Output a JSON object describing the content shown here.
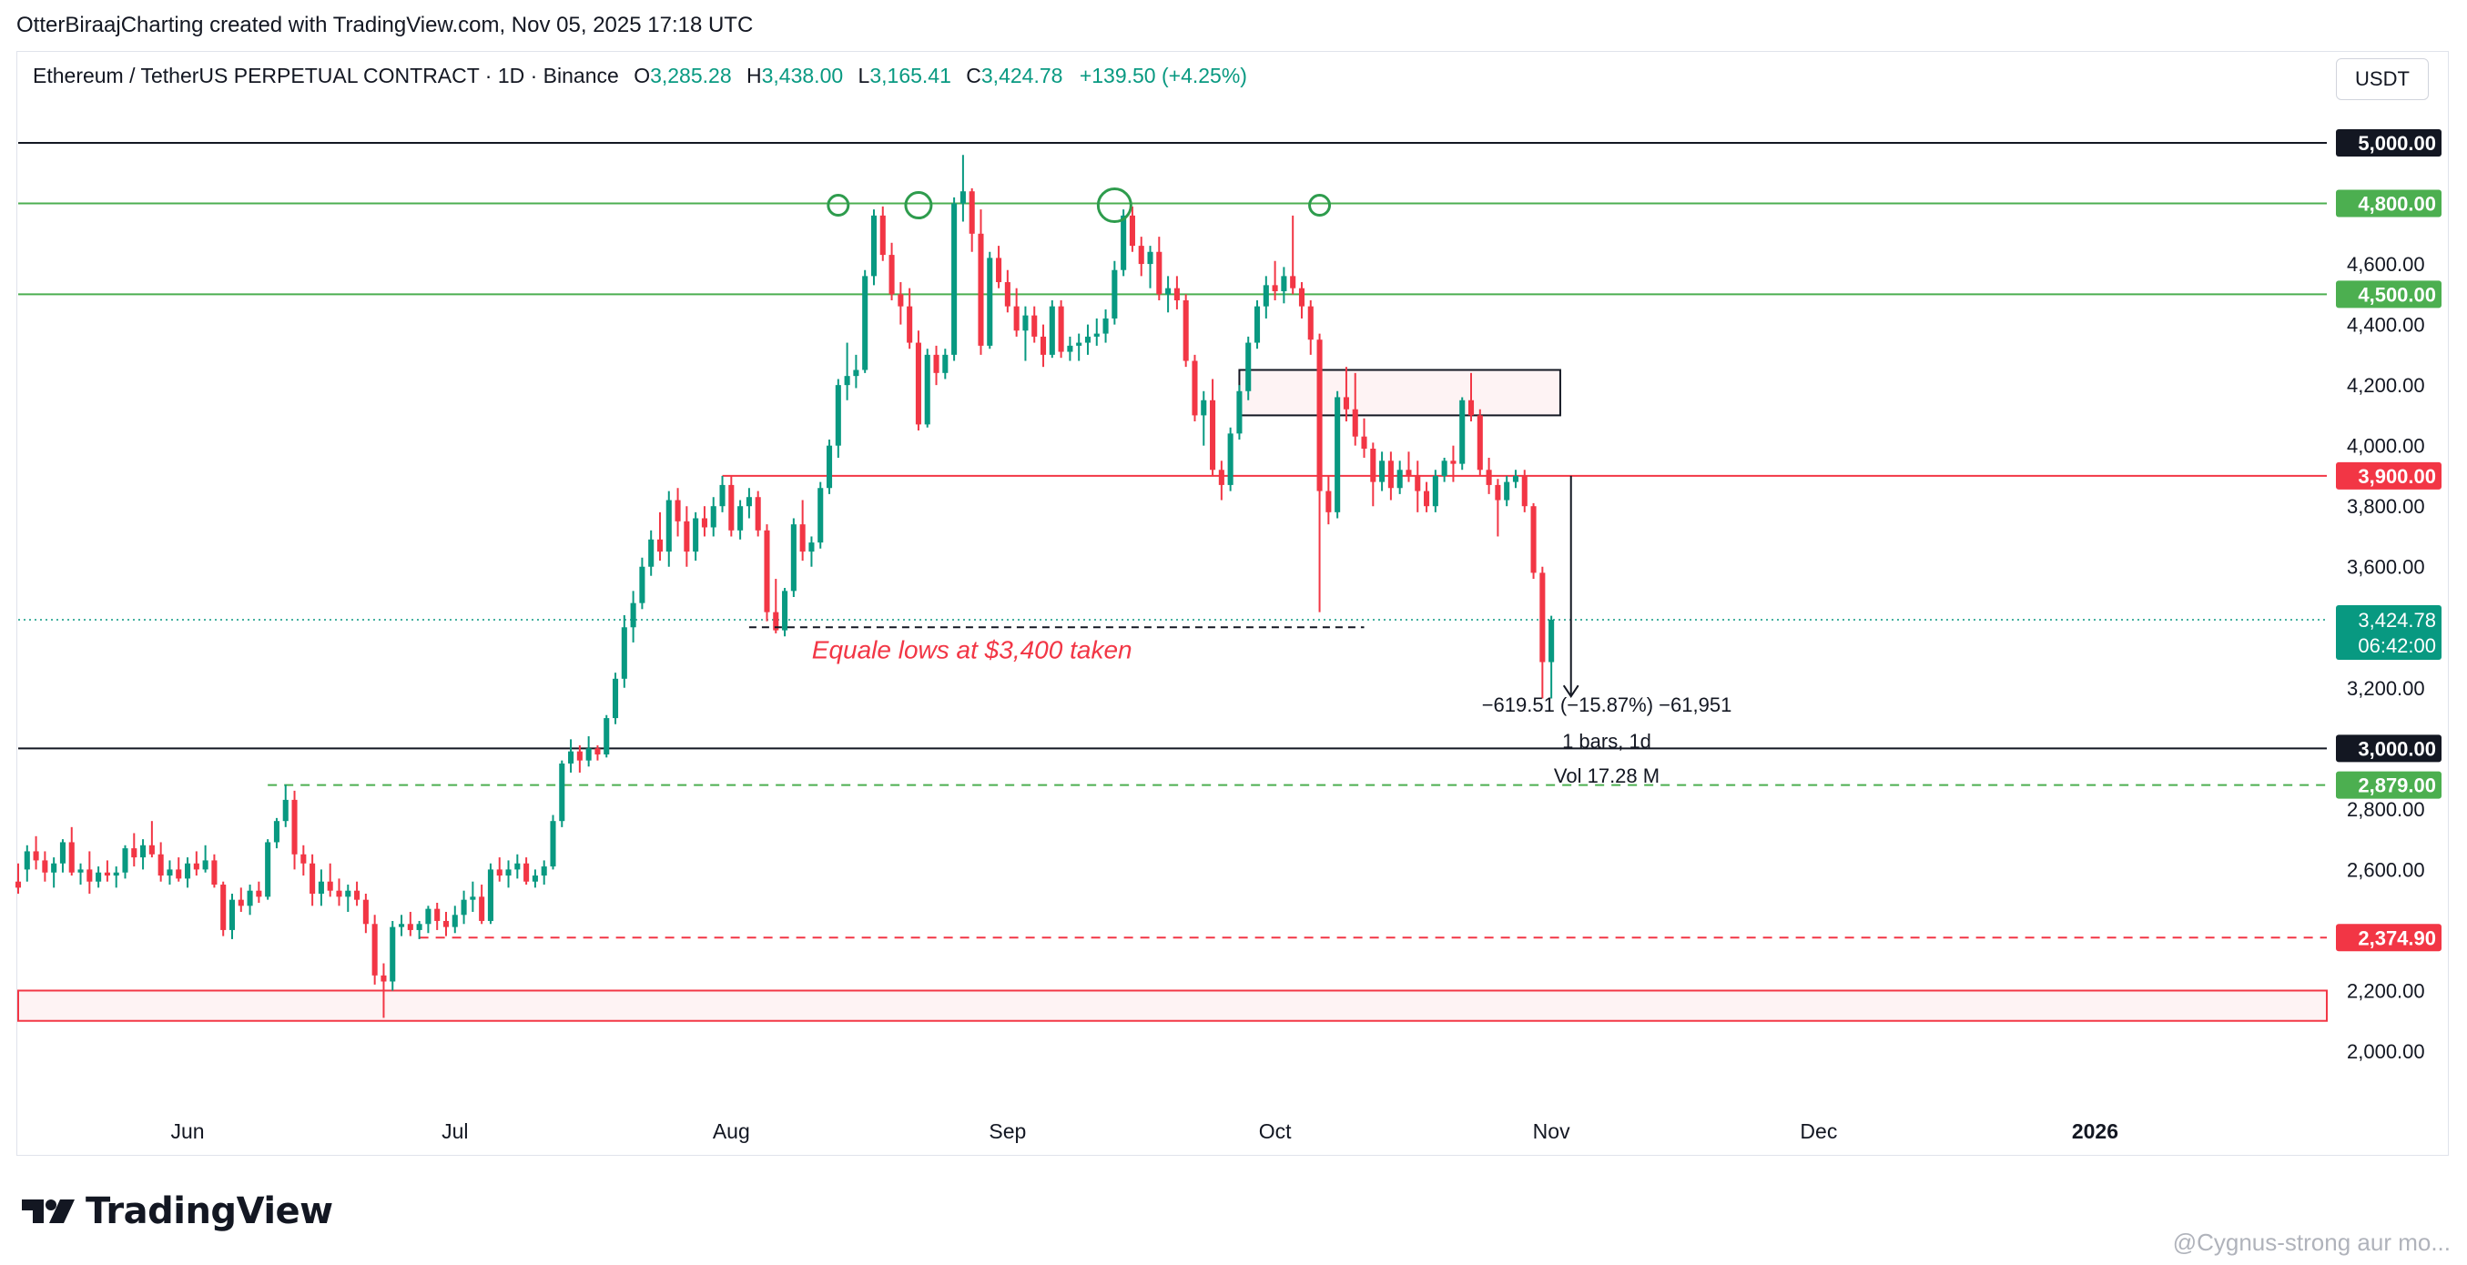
{
  "header": {
    "attribution": "OtterBiraajCharting created with TradingView.com, Nov 05, 2025 17:18 UTC"
  },
  "legend": {
    "symbol": "Ethereum / TetherUS PERPETUAL CONTRACT · 1D · Binance",
    "open_label": "O",
    "open": "3,285.28",
    "high_label": "H",
    "high": "3,438.00",
    "low_label": "L",
    "low": "3,165.41",
    "close_label": "C",
    "close": "3,424.78",
    "change": "+139.50 (+4.25%)"
  },
  "currency_button": "USDT",
  "branding": {
    "logo_text": "TradingView"
  },
  "watermark": "@Cygnus-strong aur mo...",
  "colors": {
    "up": "#089981",
    "down": "#f23645",
    "green_level": "#4caf50",
    "red_level": "#f23645",
    "black_level": "#131722",
    "annotation_red": "#f23645"
  },
  "chart_data": {
    "type": "candlestick",
    "title": "Ethereum / TetherUS PERPETUAL CONTRACT · 1D · Binance",
    "x_axis": {
      "type": "date",
      "range": [
        "2025-05-13",
        "2026-01-27"
      ],
      "tick_labels": [
        {
          "date": "2025-06-01",
          "label": "Jun"
        },
        {
          "date": "2025-07-01",
          "label": "Jul"
        },
        {
          "date": "2025-08-01",
          "label": "Aug"
        },
        {
          "date": "2025-09-01",
          "label": "Sep"
        },
        {
          "date": "2025-10-01",
          "label": "Oct"
        },
        {
          "date": "2025-11-01",
          "label": "Nov"
        },
        {
          "date": "2025-12-01",
          "label": "Dec"
        },
        {
          "date": "2026-01-01",
          "label": "2026"
        }
      ]
    },
    "y_axis": {
      "range": [
        1800,
        5200
      ],
      "ticks": [
        2000,
        2200,
        2600,
        2800,
        3200,
        3600,
        3800,
        4000,
        4200,
        4400,
        4600
      ],
      "tick_labels": [
        "2,000.00",
        "2,200.00",
        "2,600.00",
        "2,800.00",
        "3,200.00",
        "3,600.00",
        "3,800.00",
        "4,000.00",
        "4,200.00",
        "4,400.00",
        "4,600.00"
      ]
    },
    "grid": false,
    "price_levels": [
      {
        "price": 5000,
        "label": "5,000.00",
        "style": "solid",
        "color": "#131722"
      },
      {
        "price": 4800,
        "label": "4,800.00",
        "style": "solid",
        "color": "#4caf50"
      },
      {
        "price": 4500,
        "label": "4,500.00",
        "style": "solid",
        "color": "#4caf50"
      },
      {
        "price": 3900,
        "label": "3,900.00",
        "style": "solid",
        "color": "#f23645",
        "start": "2025-07-31"
      },
      {
        "price": 3000,
        "label": "3,000.00",
        "style": "solid",
        "color": "#131722"
      },
      {
        "price": 2879,
        "label": "2,879.00",
        "style": "dashed",
        "color": "#4caf50",
        "start": "2025-06-10"
      },
      {
        "price": 2374.9,
        "label": "2,374.90",
        "style": "dashed",
        "color": "#f23645",
        "start": "2025-06-27"
      }
    ],
    "current_price": {
      "price": 3424.78,
      "label": "3,424.78",
      "countdown": "06:42:00"
    },
    "zones": [
      {
        "from": 2100,
        "to": 2200,
        "start": "2025-05-13",
        "color": "#f23645"
      },
      {
        "from": 4100,
        "to": 4250,
        "start": "2025-09-27",
        "end": "2025-11-02",
        "color": "#f23645"
      }
    ],
    "annotations": {
      "equal_lows": {
        "text": "Equale lows at $3,400 taken",
        "price": 3400,
        "start": "2025-08-03",
        "end": "2025-10-11"
      },
      "circles": [
        {
          "date": "2025-08-13",
          "price": 4800
        },
        {
          "date": "2025-08-22",
          "price": 4800
        },
        {
          "date": "2025-09-13",
          "price": 4800
        },
        {
          "date": "2025-10-06",
          "price": 4800
        }
      ],
      "measure": {
        "from_date": "2025-11-03",
        "from_price": 3900,
        "to_price": 3280,
        "line1": "−619.51 (−15.87%) −61,951",
        "line2": "1 bars, 1d",
        "line3": "Vol 17.28 M"
      }
    },
    "series_ohlc_compact": "2025-05-13|2560,2620,2520,2540;2600,2680,2560,2660;2660,2710,2600,2630;2630,2660,2560,2590;2590,2640,2540,2620;2620,2700,2590,2690;2690,2740,2580,2590;2590,2620,2550,2600;2600,2660,2520,2560;2560,2610,2540,2590;2590,2630,2560,2580;2580,2610,2540,2590;2590,2680,2570,2670;2670,2720,2610,2640;2640,2700,2600,2680;2680,2760,2640,2650;2650,2690,2560,2580;2580,2630,2550,2600;2600,2640,2560,2570;2570,2640,2540,2620;2620,2660,2580,2600;2600,2680,2590,2630;2630,2650,2540,2550;2550,2560,2380,2400;2400,2520,2370,2500;2500,2540,2460,2480;2480,2550,2450,2530;2530,2560,2490,2510;2510,2700,2500,2690;2690,2770,2670,2760;2760,2880,2740,2830;2830,2860,2600,2650;2650,2680,2580,2620;2620,2650,2480,2520;2520,2600,2480,2560;2560,2620,2510,2530;2530,2570,2480,2510;2510,2550,2460,2530;2530,2560,2480,2500;2500,2520,2390,2420;2420,2450,2220,2250;2250,2290,2110,2230;2230,2430,2200,2410;2410,2450,2380,2420;2420,2460,2380,2400;2400,2430,2370,2420;2420,2480,2390,2470;2470,2490,2400,2430;2430,2460,2380,2410;2410,2480,2390,2450;2450,2530,2420,2500;2500,2560,2460,2510;2510,2550,2420,2430;2430,2620,2420,2600;2600,2640,2560,2580;2580,2630,2540,2600;2600,2650,2570,2620;2620,2640,2550,2560;2560,2600,2540,2580;2580,2630,2550,2610;2610,2780,2600,2760;2760,2960,2740,2950;2950,3030,2920,2990;2990,3010,2920,2960;2960,3040,2940,3000;3000,3010,2960,2980;2980,3110,2970,3100;3100,3250,3080,3230;3230,3440,3200,3400;3400,3520,3350,3480;3480,3630,3460,3600;3600,3720,3570,3690;3690,3780,3620,3650;3650,3850,3600,3820;3820,3860,3700,3750;3750,3800,3600,3650;3650,3780,3620,3760;3760,3800,3700,3730;3730,3830,3700,3800;3800,3900,3780,3870;3870,3900,3700,3720;3720,3820,3690,3800;3800,3860,3760,3830;3830,3850,3700,3720;3720,3740,3420,3450;3450,3560,3380,3390;3390,3530,3370,3520;3520,3760,3500,3740;3740,3820,3620,3650;3650,3700,3600,3680;3680,3880,3660,3860;3860,4020,3840,4000;4000,4220,3960,4200;4200,4340,4150,4230;4230,4300,4190,4250;4250,4580,4240,4560;4560,4780,4530,4760;4760,4790,4610,4630;4630,4670,4480,4500;4500,4540,4400,4460;4460,4520,4320,4340;4340,4380,4050,4070;4070,4320,4060,4300;4300,4330,4200,4240;4240,4320,4220,4300;4300,4820,4280,4800;4800,4960,4740,4840;4840,4850,4640,4700;4700,4780,4300,4330;4330,4640,4320,4620;4620,4660,4520,4540;4540,4580,4440,4460;4460,4520,4360,4380;4380,4460,4280,4430;4430,4460,4340,4360;4360,4400,4260,4300;4300,4480,4290,4460;4460,4480,4290,4310;4310,4360,4280,4330;4330,4370,4280,4340;4340,4400,4300,4360;4360,4420,4330,4370;4370,4450,4340,4420;4420,4610,4400,4580;4580,4780,4560,4760;4760,4790,4640,4660;4660,4690,4560,4600;4600,4660,4520,4640;4640,4690,4480,4500;4500,4560,4440,4520;4520,4560,4450,4480;4480,4500,4260,4280;4280,4300,4080,4100;4100,4180,4000,4150;4150,4220,3900,3920;3920,3950,3820,3870;3870,4060,3850,4040;4040,4200,4020,4180;4180,4360,4150,4340;4340,4480,4320,4460;4460,4560,4420,4530;4530,4610,4480,4510;4510,4590,4470,4560;4560,4760,4500,4520;4520,4540,4420,4460;4460,4480,4300,4350;4350,4370,3450,3850;3850,3900,3740,3780;3780,4180,3760,4160;4160,4260,4080,4120;4120,4240,4000,4030;4030,4090,3960,3990;3990,4010,3800,3880;3880,3980,3850,3950;3950,3980,3820,3860;3860,3950,3840,3920;3920,3980,3880,3900;3900,3950,3780,3850;3850,3880,3780,3800;3800,3920,3780,3900;3900,3960,3880,3950;3950,4000,3880,3940;3940,4160,3920,4150;4150,4240,4080,4100;4100,4120,3900,3920;3920,3960,3840,3870;3870,3890,3700,3820;3820,3900,3800,3880;3880,3920,3860,3900;3900,3920,3780,3800;3800,3810,3560,3580;3580,3600,3165,3285;3285,3438,3165,3425"
  }
}
